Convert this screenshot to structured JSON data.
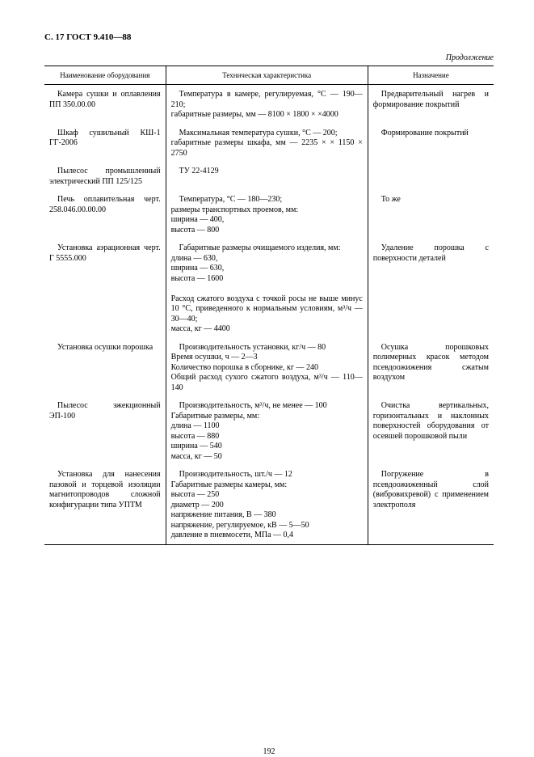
{
  "header": "С. 17 ГОСТ 9.410—88",
  "continuation_label": "Продолжение",
  "table": {
    "headers": [
      "Наименование оборудования",
      "Техническая характеристика",
      "Назначение"
    ],
    "rows": [
      {
        "col1": "Камера сушки и оплавления ПП 350.00.00",
        "col2": "Температура в камере, регулируемая, °С — 190—210;\nгабаритные размеры, мм — 8100 × 1800 × ×4000",
        "col3": "Предварительный нагрев и формирование покрытий"
      },
      {
        "col1": "Шкаф сушильный КШ-1 ГГ-2006",
        "col2": "Максимальная температура сушки, °С — 200;\nгабаритные размеры шкафа, мм — 2235 × × 1150 × 2750",
        "col3": "Формирование покрытий"
      },
      {
        "col1": "Пылесос промышленный электрический ПП 125/125",
        "col2": "ТУ 22-4129",
        "col3": ""
      },
      {
        "col1": "Печь оплавительная черт. 258.046.00.00.00",
        "col2": "Температура, °С — 180—230;\nразмеры транспортных проемов, мм:\nширина — 400,\nвысота — 800",
        "col3": "То же"
      },
      {
        "col1": "Установка аэрационная черт. Г 5555.000",
        "col2": "Габаритные размеры очищаемого изделия, мм:\nдлина — 630,\nширина — 630,\nвысота — 1600\n\nРасход сжатого воздуха с точкой росы не выше минус 10 °С, приведенного к нормальным условиям, м³/ч — 30—40;\nмасса, кг — 4400",
        "col3": "Удаление порошка с поверхности деталей"
      },
      {
        "col1": "Установка осушки порошка",
        "col2": "Производительность установки, кг/ч — 80\nВремя осушки, ч — 2—3\nКоличество порошка в сборнике, кг — 240\nОбщий расход сухого сжатого воздуха, м³/ч — 110—140",
        "col3": "Осушка порошковых полимерных красок методом псевдоожижения сжатым воздухом"
      },
      {
        "col1": "Пылесос эжекционный ЭП-100",
        "col2": "Производительность, м³/ч, не менее — 100\nГабаритные размеры, мм:\nдлина — 1100\nвысота — 880\nширина — 540\nмасса, кг — 50",
        "col3": "Очистка вертикальных, горизонтальных и наклонных поверхностей оборудования от осевшей порошковой пыли"
      },
      {
        "col1": "Установка для нанесения пазовой и торцевой изоляции магнитопроводов сложной конфигурации типа УПТМ",
        "col2": "Производительность, шт./ч — 12\nГабаритные размеры камеры, мм:\nвысота — 250\nдиаметр — 200\nнапряжение питания, В — 380\nнапряжение, регулируемое, кВ — 5—50\nдавление в пневмосети, МПа — 0,4",
        "col3": "Погружение в псевдоожиженный слой (вибровихревой) c применением электрополя"
      }
    ]
  },
  "page_number": "192"
}
